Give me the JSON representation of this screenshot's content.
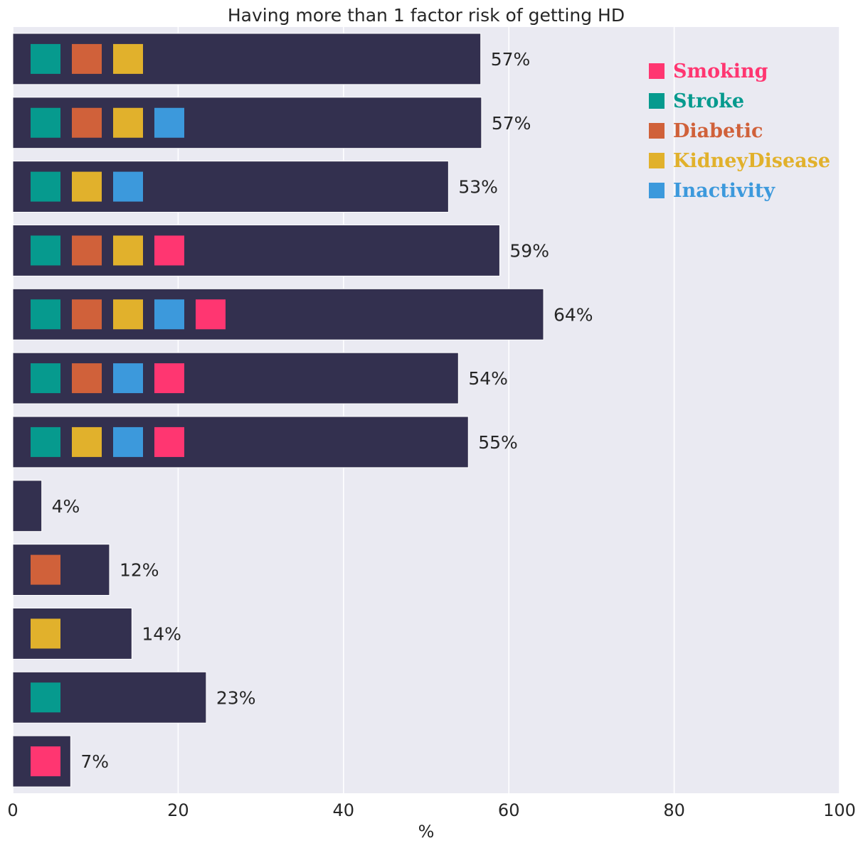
{
  "chart_data": {
    "type": "bar",
    "orientation": "horizontal",
    "title": "Having more than 1 factor risk of getting HD",
    "xlabel": "%",
    "ylabel": "",
    "xlim": [
      0,
      100
    ],
    "xticks": [
      0,
      20,
      40,
      60,
      80,
      100
    ],
    "grid": true,
    "legend_position": "top-right",
    "bar_color": "#33304f",
    "background_color": "#eaeaf2",
    "factors": [
      {
        "name": "Smoking",
        "color": "#ff3671"
      },
      {
        "name": "Stroke",
        "color": "#069a8e"
      },
      {
        "name": "Diabetic",
        "color": "#d0613a"
      },
      {
        "name": "KidneyDisease",
        "color": "#e1b12c"
      },
      {
        "name": "Inactivity",
        "color": "#3c99dc"
      }
    ],
    "bars": [
      {
        "value": 56.6,
        "label": "57%",
        "factors": [
          "Stroke",
          "Diabetic",
          "KidneyDisease"
        ]
      },
      {
        "value": 56.7,
        "label": "57%",
        "factors": [
          "Stroke",
          "Diabetic",
          "KidneyDisease",
          "Inactivity"
        ]
      },
      {
        "value": 52.7,
        "label": "53%",
        "factors": [
          "Stroke",
          "KidneyDisease",
          "Inactivity"
        ]
      },
      {
        "value": 58.9,
        "label": "59%",
        "factors": [
          "Stroke",
          "Diabetic",
          "KidneyDisease",
          "Smoking"
        ]
      },
      {
        "value": 64.2,
        "label": "64%",
        "factors": [
          "Stroke",
          "Diabetic",
          "KidneyDisease",
          "Inactivity",
          "Smoking"
        ]
      },
      {
        "value": 53.9,
        "label": "54%",
        "factors": [
          "Stroke",
          "Diabetic",
          "Inactivity",
          "Smoking"
        ]
      },
      {
        "value": 55.1,
        "label": "55%",
        "factors": [
          "Stroke",
          "KidneyDisease",
          "Inactivity",
          "Smoking"
        ]
      },
      {
        "value": 3.5,
        "label": "4%",
        "factors": []
      },
      {
        "value": 11.7,
        "label": "12%",
        "factors": [
          "Diabetic"
        ]
      },
      {
        "value": 14.4,
        "label": "14%",
        "factors": [
          "KidneyDisease"
        ]
      },
      {
        "value": 23.4,
        "label": "23%",
        "factors": [
          "Stroke"
        ]
      },
      {
        "value": 7.0,
        "label": "7%",
        "factors": [
          "Smoking"
        ]
      }
    ]
  }
}
